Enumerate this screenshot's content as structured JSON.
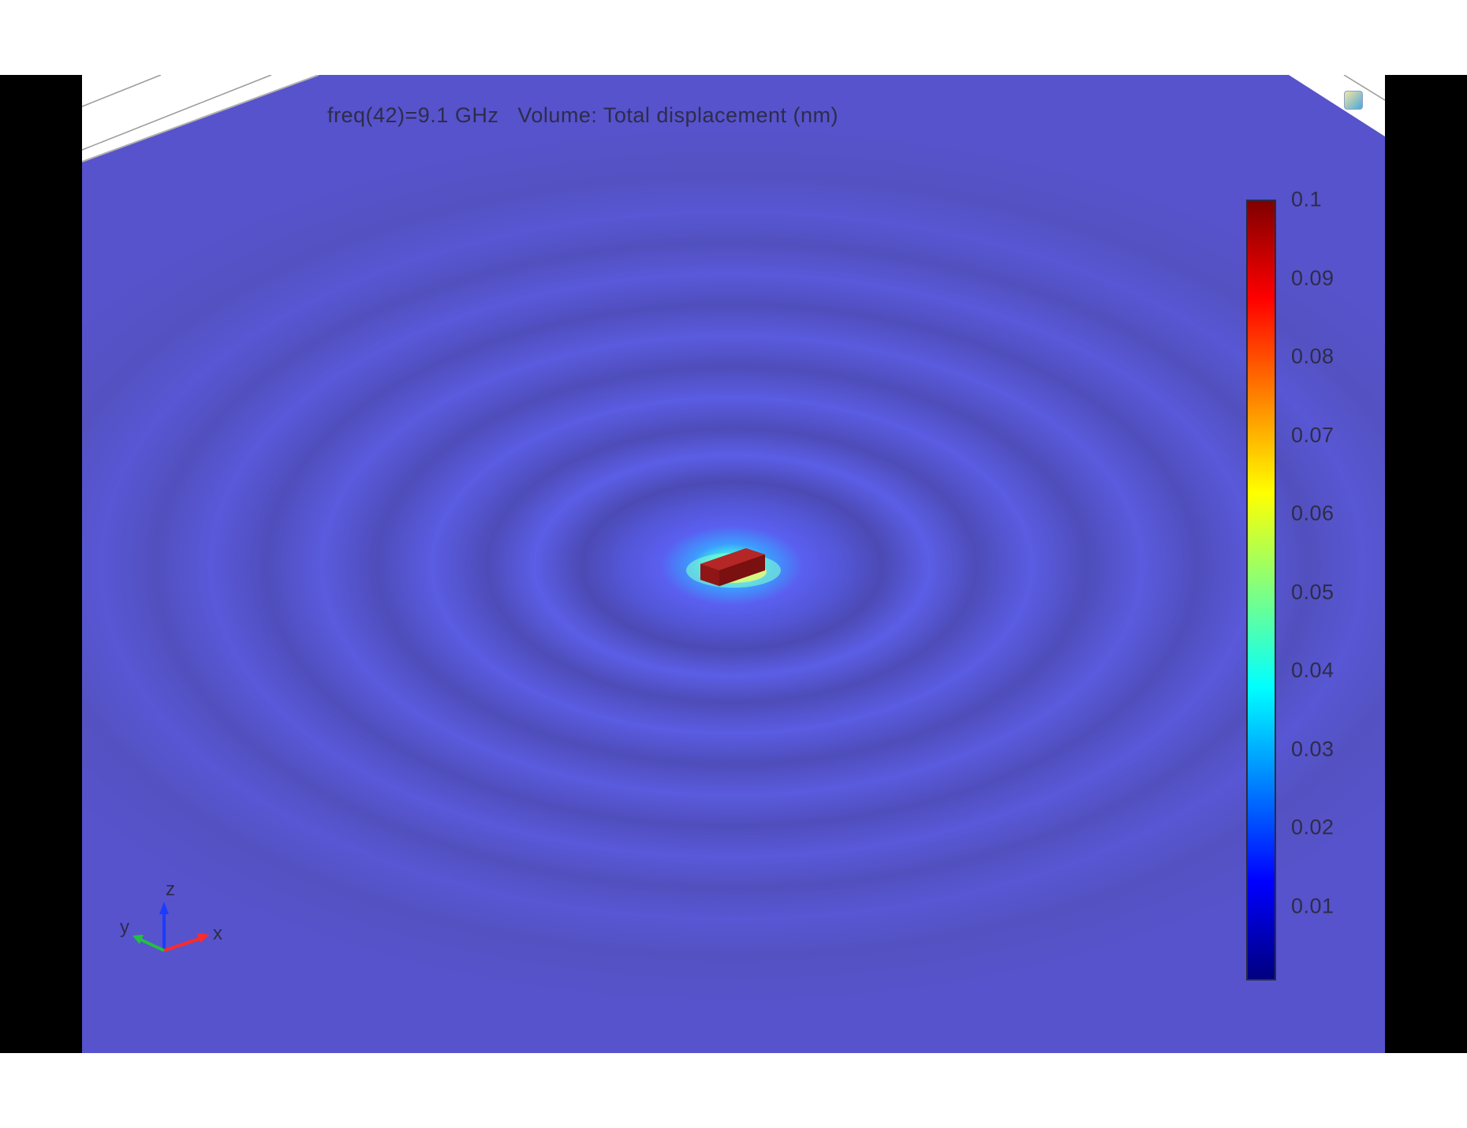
{
  "plot": {
    "title": "freq(42)=9.1 GHz   Volume: Total displacement (nm)"
  },
  "colorbar": {
    "labels": [
      "0.1",
      "0.09",
      "0.08",
      "0.07",
      "0.06",
      "0.05",
      "0.04",
      "0.03",
      "0.02",
      "0.01"
    ],
    "colormap": [
      "#00007f",
      "#0000ff",
      "#0080ff",
      "#00ffff",
      "#80ff80",
      "#ffff00",
      "#ff8000",
      "#ff0000",
      "#7f0000"
    ]
  },
  "axes": {
    "x": "x",
    "y": "y",
    "z": "z"
  },
  "colors": {
    "background": "#5a55c8",
    "ring_dark": "#4d4ab0",
    "ring_light": "#5b5fe8",
    "object": "#9c1a1a"
  }
}
